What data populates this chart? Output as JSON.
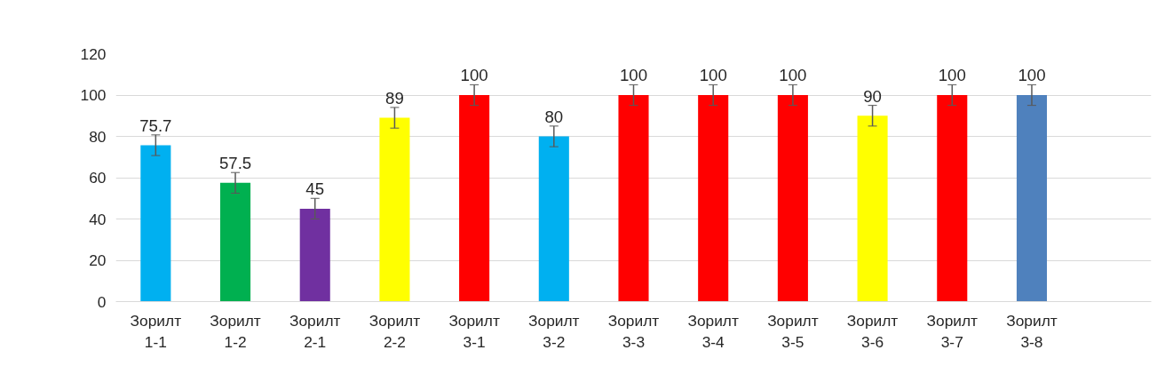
{
  "chart_data": {
    "type": "bar",
    "categories": [
      "Зорилт 1-1",
      "Зорилт 1-2",
      "Зорилт 2-1",
      "Зорилт 2-2",
      "Зорилт 3-1",
      "Зорилт 3-2",
      "Зорилт 3-3",
      "Зорилт 3-4",
      "Зорилт 3-5",
      "Зорилт 3-6",
      "Зорилт 3-7",
      "Зорилт 3-8",
      null
    ],
    "values": [
      75.7,
      57.5,
      45,
      89,
      100,
      80,
      100,
      100,
      100,
      90,
      100,
      100,
      null
    ],
    "colors": [
      "#00b0f0",
      "#00b050",
      "#7030a0",
      "#ffff00",
      "#ff0000",
      "#00b0f0",
      "#ff0000",
      "#ff0000",
      "#ff0000",
      "#ffff00",
      "#ff0000",
      "#4f81bd",
      "#4f81bd"
    ],
    "errors": [
      5,
      5,
      5,
      5,
      5,
      5,
      5,
      5,
      5,
      5,
      5,
      5,
      null
    ],
    "ylim": [
      0,
      120
    ],
    "yticks": [
      0,
      20,
      40,
      60,
      80,
      100,
      120
    ],
    "grid": "y",
    "data_labels": true
  }
}
